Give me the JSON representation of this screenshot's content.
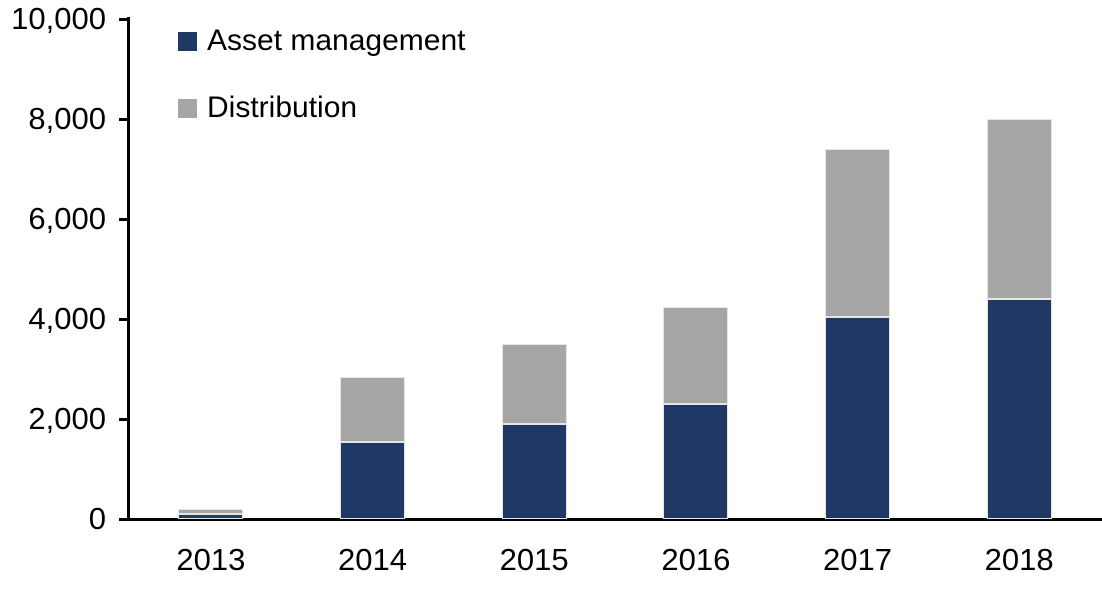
{
  "chart_data": {
    "type": "bar",
    "stacked": true,
    "title": "",
    "xlabel": "",
    "ylabel": "",
    "categories": [
      "2013",
      "2014",
      "2015",
      "2016",
      "2017",
      "2018"
    ],
    "series": [
      {
        "name": "Asset management",
        "color": "#1F3864",
        "values": [
          100,
          1550,
          1900,
          2300,
          4050,
          4400
        ]
      },
      {
        "name": "Distribution",
        "color": "#A6A6A6",
        "values": [
          100,
          1300,
          1600,
          1950,
          3350,
          3600
        ]
      }
    ],
    "totals": [
      200,
      2850,
      3500,
      4250,
      7400,
      8000
    ],
    "ylim": [
      0,
      10000
    ],
    "ytick_step": 2000,
    "ytick_labels": [
      "0",
      "2,000",
      "4,000",
      "6,000",
      "8,000",
      "10,000"
    ],
    "grid": false,
    "legend_position": "top-left"
  },
  "colors": {
    "axis": "#000000",
    "text": "#000000",
    "background": "#FFFFFF",
    "bar_border": "#E5E5E5"
  }
}
